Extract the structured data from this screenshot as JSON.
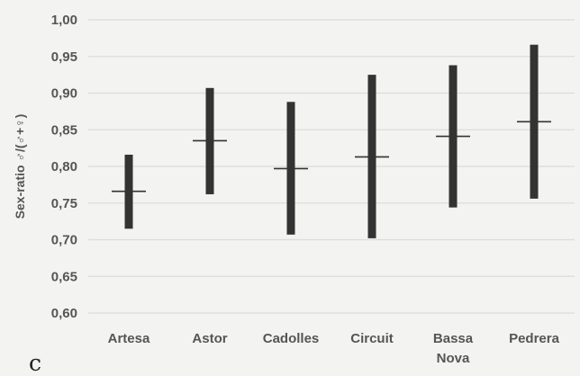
{
  "chart_data": {
    "type": "range",
    "ylabel": "Sex-ratio ♂/(♂+♀)",
    "ylim": [
      0.6,
      1.0
    ],
    "yticks": [
      "0,60",
      "0,65",
      "0,70",
      "0,75",
      "0,80",
      "0,85",
      "0,90",
      "0,95",
      "1,00"
    ],
    "ytick_values": [
      0.6,
      0.65,
      0.7,
      0.75,
      0.8,
      0.85,
      0.9,
      0.95,
      1.0
    ],
    "categories": [
      "Artesa",
      "Astor",
      "Cadolles",
      "Circuit",
      "Bassa Nova",
      "Pedrera"
    ],
    "category_lines": [
      [
        "Artesa"
      ],
      [
        "Astor"
      ],
      [
        "Cadolles"
      ],
      [
        "Circuit"
      ],
      [
        "Bassa",
        "Nova"
      ],
      [
        "Pedrera"
      ]
    ],
    "series": [
      {
        "low": [
          0.715,
          0.762,
          0.707,
          0.702,
          0.744,
          0.756
        ],
        "high": [
          0.816,
          0.907,
          0.888,
          0.925,
          0.938,
          0.966
        ],
        "mean": [
          0.766,
          0.835,
          0.797,
          0.813,
          0.841,
          0.861
        ]
      }
    ],
    "grid": true,
    "panel_label": "c",
    "colors": {
      "bar": "#333333",
      "grid": "#dcdcdc",
      "text": "#555555",
      "background": "#f3f3f1"
    }
  }
}
